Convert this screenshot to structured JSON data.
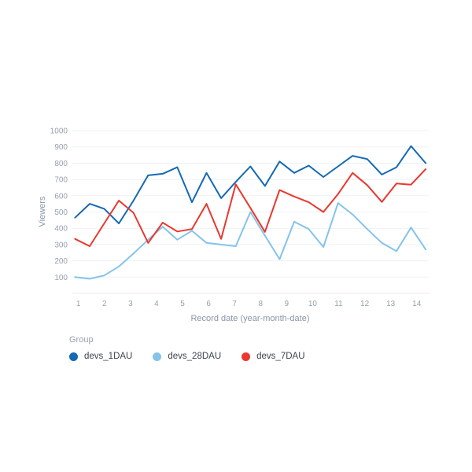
{
  "chart": {
    "y_axis": {
      "title": "Viewers",
      "ticks": [
        100,
        200,
        300,
        400,
        500,
        600,
        700,
        800,
        900,
        1000
      ]
    },
    "x_axis": {
      "title": "Record date (year-month-date)",
      "ticks": [
        "1",
        "2",
        "3",
        "4",
        "5",
        "6",
        "7",
        "8",
        "9",
        "10",
        "11",
        "12",
        "13",
        "14"
      ]
    },
    "legend": {
      "title": "Group"
    }
  },
  "colors": {
    "grid": "#eef1f4",
    "axis_line": "#e8ebef",
    "tick_text": "#95a0ae",
    "axis_title_text": "#8a96a5"
  },
  "chart_data": {
    "type": "line",
    "title": "",
    "xlabel": "Record date (year-month-date)",
    "ylabel": "Viewers",
    "ylim": [
      0,
      1000
    ],
    "y_ticks": [
      100,
      200,
      300,
      400,
      500,
      600,
      700,
      800,
      900,
      1000
    ],
    "x_tick_labels": [
      1,
      2,
      3,
      4,
      5,
      6,
      7,
      8,
      9,
      10,
      11,
      12,
      13,
      14
    ],
    "grid": true,
    "legend_position": "bottom-left",
    "legend_title": "Group",
    "points_per_series": 25,
    "x_start_label": 1,
    "x_end_label": 14.35,
    "series": [
      {
        "name": "devs_1DAU",
        "color": "#1569b3",
        "values": [
          465,
          550,
          520,
          430,
          570,
          725,
          735,
          775,
          560,
          740,
          585,
          685,
          780,
          660,
          810,
          740,
          785,
          715,
          780,
          845,
          825,
          730,
          775,
          905,
          800
        ]
      },
      {
        "name": "devs_28DAU",
        "color": "#85c3e9",
        "values": [
          100,
          90,
          110,
          165,
          245,
          330,
          410,
          330,
          385,
          310,
          300,
          290,
          500,
          355,
          210,
          440,
          395,
          285,
          555,
          485,
          395,
          310,
          260,
          405,
          270
        ]
      },
      {
        "name": "devs_7DAU",
        "color": "#e8382f",
        "values": [
          335,
          290,
          430,
          570,
          495,
          310,
          435,
          380,
          395,
          550,
          335,
          670,
          525,
          378,
          635,
          595,
          560,
          500,
          610,
          740,
          665,
          562,
          675,
          668,
          763
        ]
      }
    ]
  }
}
